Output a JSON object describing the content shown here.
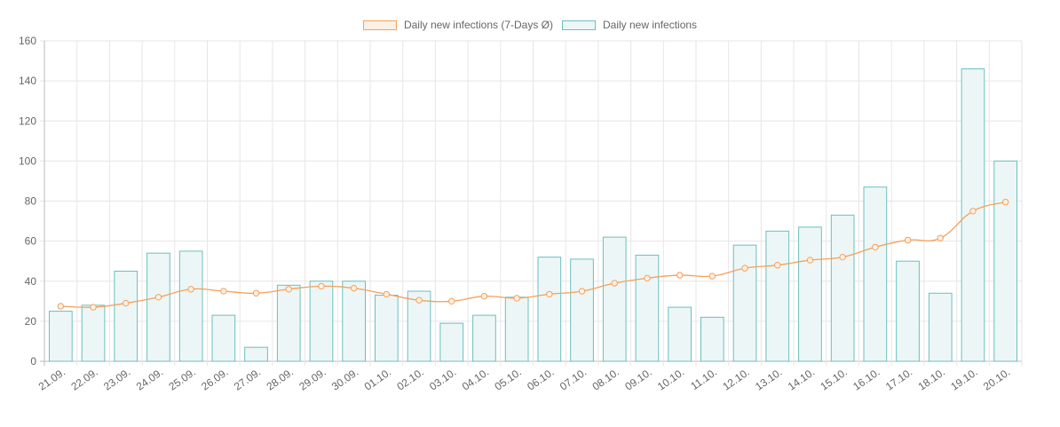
{
  "chart_data": {
    "type": "bar",
    "categories": [
      "21.09.",
      "22.09.",
      "23.09.",
      "24.09.",
      "25.09.",
      "26.09.",
      "27.09.",
      "28.09.",
      "29.09.",
      "30.09.",
      "01.10.",
      "02.10.",
      "03.10.",
      "04.10.",
      "05.10.",
      "06.10.",
      "07.10.",
      "08.10.",
      "09.10.",
      "10.10.",
      "11.10.",
      "12.10.",
      "13.10.",
      "14.10.",
      "15.10.",
      "16.10.",
      "17.10.",
      "18.10.",
      "19.10.",
      "20.10."
    ],
    "series": [
      {
        "name": "Daily new infections (7-Days Ø)",
        "type": "line",
        "color": "#f5a05a",
        "values": [
          27.5,
          27,
          29,
          32,
          36,
          35,
          34,
          36,
          37.5,
          36.5,
          33.5,
          30.5,
          30,
          32.5,
          31.5,
          33.5,
          35,
          39,
          41.5,
          43,
          42.5,
          46.5,
          48,
          50.5,
          52,
          57,
          60.5,
          61.5,
          75,
          79.5
        ]
      },
      {
        "name": "Daily new infections",
        "type": "bar",
        "color": "#6bbfc0",
        "fill": "#edf6f6",
        "values": [
          25,
          28,
          45,
          54,
          55,
          23,
          7,
          38,
          40,
          40,
          33,
          35,
          19,
          23,
          32,
          52,
          51,
          62,
          53,
          27,
          22,
          58,
          65,
          67,
          73,
          87,
          50,
          34,
          146,
          100
        ]
      }
    ],
    "ylim": [
      0,
      160
    ],
    "yticks": [
      0,
      20,
      40,
      60,
      80,
      100,
      120,
      140,
      160
    ],
    "grid": true,
    "legend_position": "top-center"
  }
}
